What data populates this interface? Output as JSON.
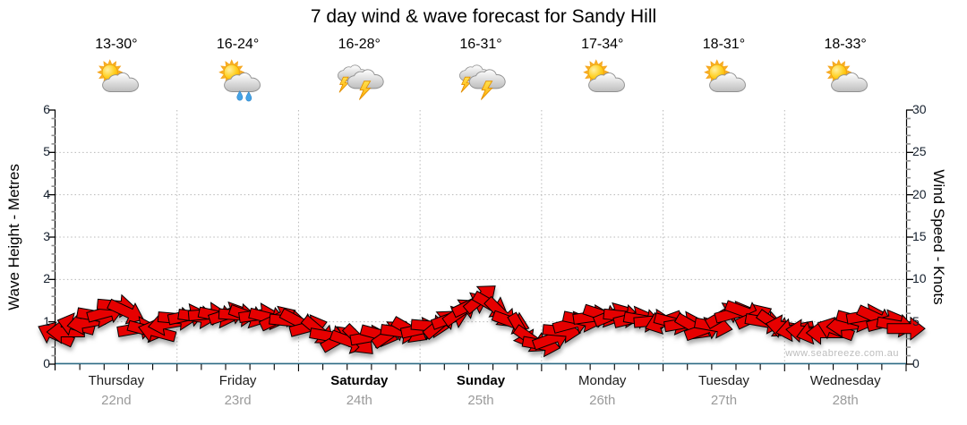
{
  "title": "7 day wind & wave forecast for Sandy Hill",
  "watermark": "www.seabreeze.com.au",
  "axes": {
    "left_label": "Wave Height - Metres",
    "right_label": "Wind Speed - Knots",
    "wave_ticks": [
      0,
      1,
      2,
      3,
      4,
      5,
      6
    ],
    "wind_ticks": [
      0,
      5,
      10,
      15,
      20,
      25,
      30
    ]
  },
  "days": [
    {
      "name": "Thursday",
      "date": "22nd",
      "temp": "13-30°",
      "icon": "partly-cloudy",
      "weekend": false
    },
    {
      "name": "Friday",
      "date": "23rd",
      "temp": "16-24°",
      "icon": "partly-cloudy-rain",
      "weekend": false
    },
    {
      "name": "Saturday",
      "date": "24th",
      "temp": "16-28°",
      "icon": "thunderstorm",
      "weekend": true
    },
    {
      "name": "Sunday",
      "date": "25th",
      "temp": "16-31°",
      "icon": "thunderstorm",
      "weekend": true
    },
    {
      "name": "Monday",
      "date": "26th",
      "temp": "17-34°",
      "icon": "partly-cloudy",
      "weekend": false
    },
    {
      "name": "Tuesday",
      "date": "27th",
      "temp": "18-31°",
      "icon": "partly-cloudy",
      "weekend": false
    },
    {
      "name": "Wednesday",
      "date": "28th",
      "temp": "18-33°",
      "icon": "partly-cloudy",
      "weekend": false
    }
  ],
  "colors": {
    "arrow": "#e60000",
    "arrow_outline": "#000000",
    "baseline": "#2e6b85",
    "grid": "#b8b8b8",
    "date_text": "#9a9a9a"
  },
  "chart_data": {
    "type": "wind-arrows",
    "title": "7 day wind & wave forecast for Sandy Hill",
    "categories": [
      "Thursday 22nd",
      "Friday 23rd",
      "Saturday 24th",
      "Sunday 25th",
      "Monday 26th",
      "Tuesday 27th",
      "Wednesday 28th"
    ],
    "x_hours_range": [
      0,
      168
    ],
    "wave_axis": {
      "label": "Wave Height - Metres",
      "range": [
        0,
        6
      ],
      "gridlines": [
        1,
        2,
        3,
        4,
        5
      ]
    },
    "wind_axis": {
      "label": "Wind Speed - Knots",
      "range": [
        0,
        30
      ],
      "ticks": [
        0,
        5,
        10,
        15,
        20,
        25,
        30
      ]
    },
    "legend": "none",
    "grid": "dotted, vertical lines at day boundaries",
    "arrow_color": "#e60000",
    "arrows_format": "[hour_offset, wind_speed_knots, arrow_rotation_deg]",
    "arrows": [
      [
        0,
        3.5,
        205
      ],
      [
        2,
        3.8,
        180
      ],
      [
        4,
        4.6,
        195
      ],
      [
        6,
        4.9,
        170
      ],
      [
        8,
        5.7,
        10
      ],
      [
        10,
        6.1,
        -15
      ],
      [
        12,
        6.9,
        5
      ],
      [
        14,
        6.2,
        25
      ],
      [
        16,
        4.2,
        -10
      ],
      [
        18,
        4.0,
        15
      ],
      [
        20,
        3.8,
        195
      ],
      [
        22,
        4.8,
        170
      ],
      [
        24,
        5.4,
        5
      ],
      [
        26,
        5.7,
        -12
      ],
      [
        28,
        5.6,
        8
      ],
      [
        30,
        5.9,
        -5
      ],
      [
        32,
        5.7,
        12
      ],
      [
        34,
        5.9,
        -18
      ],
      [
        36,
        5.8,
        4
      ],
      [
        38,
        5.7,
        20
      ],
      [
        40,
        5.8,
        -8
      ],
      [
        42,
        5.5,
        14
      ],
      [
        44,
        5.4,
        -25
      ],
      [
        46,
        5.1,
        6
      ],
      [
        48,
        5.0,
        28
      ],
      [
        50,
        4.4,
        -15
      ],
      [
        52,
        3.9,
        40
      ],
      [
        54,
        3.3,
        10
      ],
      [
        56,
        3.0,
        -30
      ],
      [
        58,
        2.7,
        20
      ],
      [
        60,
        2.8,
        45
      ],
      [
        62,
        3.2,
        -10
      ],
      [
        64,
        3.5,
        15
      ],
      [
        66,
        3.6,
        -35
      ],
      [
        68,
        3.8,
        8
      ],
      [
        70,
        4.0,
        30
      ],
      [
        72,
        4.1,
        -12
      ],
      [
        74,
        4.5,
        5
      ],
      [
        76,
        4.8,
        -40
      ],
      [
        78,
        5.4,
        -20
      ],
      [
        80,
        6.2,
        -35
      ],
      [
        82,
        7.0,
        -25
      ],
      [
        84,
        7.8,
        -40
      ],
      [
        86,
        7.0,
        30
      ],
      [
        88,
        6.0,
        45
      ],
      [
        90,
        5.0,
        20
      ],
      [
        92,
        3.9,
        60
      ],
      [
        94,
        2.9,
        35
      ],
      [
        96,
        2.3,
        10
      ],
      [
        98,
        3.0,
        -20
      ],
      [
        100,
        3.9,
        5
      ],
      [
        102,
        4.8,
        -15
      ],
      [
        104,
        5.2,
        12
      ],
      [
        106,
        5.6,
        -8
      ],
      [
        108,
        5.8,
        18
      ],
      [
        110,
        5.8,
        -22
      ],
      [
        112,
        5.7,
        6
      ],
      [
        114,
        5.4,
        -14
      ],
      [
        116,
        5.2,
        10
      ],
      [
        118,
        5.1,
        -5
      ],
      [
        120,
        5.0,
        160
      ],
      [
        122,
        4.9,
        15
      ],
      [
        124,
        4.8,
        -10
      ],
      [
        126,
        4.4,
        30
      ],
      [
        128,
        4.1,
        -20
      ],
      [
        130,
        4.5,
        10
      ],
      [
        132,
        5.8,
        -30
      ],
      [
        134,
        6.0,
        -15
      ],
      [
        136,
        6.2,
        20
      ],
      [
        138,
        5.6,
        -25
      ],
      [
        140,
        5.0,
        10
      ],
      [
        142,
        4.7,
        35
      ],
      [
        144,
        4.4,
        190
      ],
      [
        146,
        4.1,
        170
      ],
      [
        148,
        3.9,
        185
      ],
      [
        150,
        3.8,
        165
      ],
      [
        152,
        3.7,
        180
      ],
      [
        154,
        4.1,
        200
      ],
      [
        156,
        4.6,
        175
      ],
      [
        158,
        5.2,
        15
      ],
      [
        160,
        5.7,
        -10
      ],
      [
        162,
        5.5,
        25
      ],
      [
        164,
        5.0,
        -15
      ],
      [
        166,
        4.6,
        10
      ],
      [
        168,
        4.2,
        0
      ]
    ]
  }
}
